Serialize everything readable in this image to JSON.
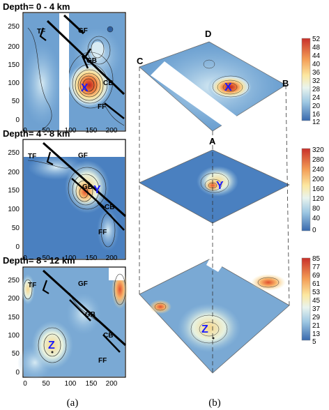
{
  "panels": [
    {
      "title": "Depth= 0 - 4 km"
    },
    {
      "title": "Depth= 4 - 8 km"
    },
    {
      "title": "Depth= 8 - 12 km"
    }
  ],
  "yticks": [
    "250",
    "200",
    "150",
    "100",
    "50",
    "0"
  ],
  "xticks": [
    "0",
    "50",
    "100",
    "150",
    "200"
  ],
  "faults": {
    "tf": "TF",
    "gf": "GF",
    "gb": "GB",
    "cb": "CB",
    "ff": "FF"
  },
  "anomalies": {
    "x": "X",
    "y": "Y",
    "z": "Z"
  },
  "corners": {
    "a": "A",
    "b": "B",
    "c": "C",
    "d": "D"
  },
  "captions": {
    "a": "(a)",
    "b": "(b)"
  },
  "colorbars": [
    {
      "ticks": [
        "52",
        "48",
        "44",
        "40",
        "36",
        "32",
        "28",
        "24",
        "20",
        "16",
        "12"
      ]
    },
    {
      "ticks": [
        "320",
        "280",
        "240",
        "200",
        "160",
        "120",
        "80",
        "40",
        "0"
      ]
    },
    {
      "ticks": [
        "85",
        "77",
        "69",
        "61",
        "53",
        "45",
        "37",
        "29",
        "21",
        "13",
        "5"
      ]
    }
  ],
  "colors": {
    "low": "#3a74b5",
    "mid": "#a8cce3",
    "high": "#d73027",
    "label": "#1a1aff"
  }
}
